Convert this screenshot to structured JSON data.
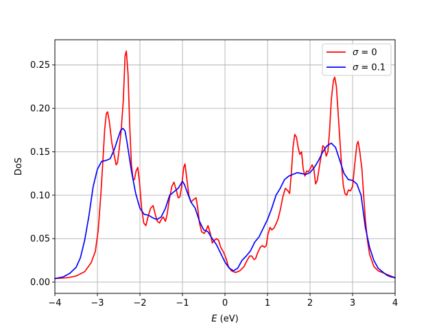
{
  "chart_data": {
    "type": "line",
    "title": "",
    "xlabel_italic": "E",
    "xlabel_rest": " (eV)",
    "ylabel": "DoS",
    "xlim": [
      -4,
      4
    ],
    "ylim": [
      -0.013,
      0.279
    ],
    "xticks": [
      -4,
      -3,
      -2,
      -1,
      0,
      1,
      2,
      3,
      4
    ],
    "xtick_labels": [
      "−4",
      "−3",
      "−2",
      "−1",
      "0",
      "1",
      "2",
      "3",
      "4"
    ],
    "yticks": [
      0.0,
      0.05,
      0.1,
      0.15,
      0.2,
      0.25
    ],
    "ytick_labels": [
      "0.00",
      "0.05",
      "0.10",
      "0.15",
      "0.20",
      "0.25"
    ],
    "grid": true,
    "legend_position": "top-right",
    "series": [
      {
        "name_symbol": "σ",
        "name_rest": " = 0",
        "color": "#ff0000",
        "points": [
          [
            -4.0,
            0.004
          ],
          [
            -3.7,
            0.005
          ],
          [
            -3.5,
            0.007
          ],
          [
            -3.3,
            0.012
          ],
          [
            -3.15,
            0.022
          ],
          [
            -3.05,
            0.035
          ],
          [
            -2.98,
            0.06
          ],
          [
            -2.92,
            0.1
          ],
          [
            -2.87,
            0.14
          ],
          [
            -2.83,
            0.175
          ],
          [
            -2.79,
            0.194
          ],
          [
            -2.76,
            0.196
          ],
          [
            -2.72,
            0.185
          ],
          [
            -2.66,
            0.16
          ],
          [
            -2.6,
            0.145
          ],
          [
            -2.56,
            0.135
          ],
          [
            -2.53,
            0.137
          ],
          [
            -2.49,
            0.152
          ],
          [
            -2.44,
            0.175
          ],
          [
            -2.39,
            0.21
          ],
          [
            -2.35,
            0.26
          ],
          [
            -2.32,
            0.266
          ],
          [
            -2.28,
            0.24
          ],
          [
            -2.24,
            0.18
          ],
          [
            -2.2,
            0.135
          ],
          [
            -2.16,
            0.118
          ],
          [
            -2.13,
            0.118
          ],
          [
            -2.09,
            0.128
          ],
          [
            -2.05,
            0.132
          ],
          [
            -2.01,
            0.115
          ],
          [
            -1.96,
            0.085
          ],
          [
            -1.91,
            0.068
          ],
          [
            -1.86,
            0.065
          ],
          [
            -1.81,
            0.075
          ],
          [
            -1.75,
            0.085
          ],
          [
            -1.69,
            0.088
          ],
          [
            -1.64,
            0.078
          ],
          [
            -1.59,
            0.07
          ],
          [
            -1.54,
            0.068
          ],
          [
            -1.5,
            0.072
          ],
          [
            -1.45,
            0.075
          ],
          [
            -1.4,
            0.07
          ],
          [
            -1.36,
            0.078
          ],
          [
            -1.31,
            0.095
          ],
          [
            -1.25,
            0.11
          ],
          [
            -1.2,
            0.115
          ],
          [
            -1.14,
            0.105
          ],
          [
            -1.1,
            0.097
          ],
          [
            -1.06,
            0.098
          ],
          [
            -1.02,
            0.11
          ],
          [
            -0.97,
            0.132
          ],
          [
            -0.94,
            0.136
          ],
          [
            -0.9,
            0.12
          ],
          [
            -0.85,
            0.1
          ],
          [
            -0.8,
            0.092
          ],
          [
            -0.74,
            0.095
          ],
          [
            -0.68,
            0.097
          ],
          [
            -0.64,
            0.085
          ],
          [
            -0.6,
            0.068
          ],
          [
            -0.55,
            0.058
          ],
          [
            -0.49,
            0.056
          ],
          [
            -0.44,
            0.06
          ],
          [
            -0.4,
            0.065
          ],
          [
            -0.35,
            0.057
          ],
          [
            -0.3,
            0.045
          ],
          [
            -0.25,
            0.048
          ],
          [
            -0.2,
            0.05
          ],
          [
            -0.15,
            0.048
          ],
          [
            -0.1,
            0.04
          ],
          [
            -0.04,
            0.035
          ],
          [
            0.02,
            0.028
          ],
          [
            0.08,
            0.018
          ],
          [
            0.15,
            0.013
          ],
          [
            0.25,
            0.011
          ],
          [
            0.35,
            0.013
          ],
          [
            0.45,
            0.018
          ],
          [
            0.52,
            0.025
          ],
          [
            0.58,
            0.03
          ],
          [
            0.63,
            0.03
          ],
          [
            0.68,
            0.026
          ],
          [
            0.72,
            0.027
          ],
          [
            0.77,
            0.034
          ],
          [
            0.83,
            0.04
          ],
          [
            0.88,
            0.042
          ],
          [
            0.93,
            0.04
          ],
          [
            0.97,
            0.042
          ],
          [
            1.01,
            0.055
          ],
          [
            1.06,
            0.063
          ],
          [
            1.1,
            0.06
          ],
          [
            1.15,
            0.062
          ],
          [
            1.2,
            0.067
          ],
          [
            1.25,
            0.073
          ],
          [
            1.3,
            0.083
          ],
          [
            1.36,
            0.098
          ],
          [
            1.42,
            0.108
          ],
          [
            1.48,
            0.105
          ],
          [
            1.52,
            0.102
          ],
          [
            1.56,
            0.125
          ],
          [
            1.6,
            0.155
          ],
          [
            1.64,
            0.17
          ],
          [
            1.68,
            0.167
          ],
          [
            1.72,
            0.155
          ],
          [
            1.76,
            0.147
          ],
          [
            1.8,
            0.15
          ],
          [
            1.84,
            0.13
          ],
          [
            1.88,
            0.122
          ],
          [
            1.92,
            0.128
          ],
          [
            1.96,
            0.127
          ],
          [
            2.0,
            0.13
          ],
          [
            2.05,
            0.135
          ],
          [
            2.09,
            0.13
          ],
          [
            2.13,
            0.113
          ],
          [
            2.17,
            0.117
          ],
          [
            2.21,
            0.13
          ],
          [
            2.26,
            0.145
          ],
          [
            2.3,
            0.157
          ],
          [
            2.34,
            0.155
          ],
          [
            2.38,
            0.145
          ],
          [
            2.42,
            0.15
          ],
          [
            2.46,
            0.175
          ],
          [
            2.5,
            0.21
          ],
          [
            2.55,
            0.232
          ],
          [
            2.58,
            0.236
          ],
          [
            2.62,
            0.225
          ],
          [
            2.66,
            0.195
          ],
          [
            2.7,
            0.165
          ],
          [
            2.74,
            0.135
          ],
          [
            2.78,
            0.112
          ],
          [
            2.82,
            0.102
          ],
          [
            2.86,
            0.1
          ],
          [
            2.9,
            0.106
          ],
          [
            2.95,
            0.105
          ],
          [
            3.0,
            0.11
          ],
          [
            3.05,
            0.135
          ],
          [
            3.1,
            0.158
          ],
          [
            3.13,
            0.162
          ],
          [
            3.17,
            0.15
          ],
          [
            3.22,
            0.13
          ],
          [
            3.26,
            0.1
          ],
          [
            3.3,
            0.072
          ],
          [
            3.35,
            0.048
          ],
          [
            3.4,
            0.032
          ],
          [
            3.5,
            0.018
          ],
          [
            3.6,
            0.013
          ],
          [
            3.75,
            0.01
          ],
          [
            3.9,
            0.007
          ],
          [
            4.0,
            0.005
          ]
        ]
      },
      {
        "name_symbol": "σ",
        "name_rest": " = 0.1",
        "color": "#0000ff",
        "points": [
          [
            -4.0,
            0.004
          ],
          [
            -3.8,
            0.006
          ],
          [
            -3.65,
            0.01
          ],
          [
            -3.5,
            0.017
          ],
          [
            -3.4,
            0.028
          ],
          [
            -3.3,
            0.048
          ],
          [
            -3.2,
            0.076
          ],
          [
            -3.1,
            0.11
          ],
          [
            -3.0,
            0.13
          ],
          [
            -2.9,
            0.139
          ],
          [
            -2.8,
            0.14
          ],
          [
            -2.7,
            0.142
          ],
          [
            -2.6,
            0.153
          ],
          [
            -2.5,
            0.168
          ],
          [
            -2.45,
            0.175
          ],
          [
            -2.4,
            0.177
          ],
          [
            -2.35,
            0.174
          ],
          [
            -2.3,
            0.16
          ],
          [
            -2.2,
            0.128
          ],
          [
            -2.1,
            0.102
          ],
          [
            -2.0,
            0.085
          ],
          [
            -1.9,
            0.078
          ],
          [
            -1.8,
            0.077
          ],
          [
            -1.7,
            0.074
          ],
          [
            -1.6,
            0.072
          ],
          [
            -1.5,
            0.075
          ],
          [
            -1.4,
            0.085
          ],
          [
            -1.3,
            0.1
          ],
          [
            -1.2,
            0.104
          ],
          [
            -1.1,
            0.108
          ],
          [
            -1.0,
            0.116
          ],
          [
            -0.95,
            0.112
          ],
          [
            -0.9,
            0.105
          ],
          [
            -0.8,
            0.092
          ],
          [
            -0.7,
            0.085
          ],
          [
            -0.6,
            0.07
          ],
          [
            -0.5,
            0.06
          ],
          [
            -0.4,
            0.058
          ],
          [
            -0.3,
            0.05
          ],
          [
            -0.2,
            0.043
          ],
          [
            -0.1,
            0.033
          ],
          [
            0.0,
            0.023
          ],
          [
            0.1,
            0.016
          ],
          [
            0.2,
            0.013
          ],
          [
            0.3,
            0.016
          ],
          [
            0.4,
            0.025
          ],
          [
            0.5,
            0.03
          ],
          [
            0.6,
            0.036
          ],
          [
            0.7,
            0.046
          ],
          [
            0.8,
            0.052
          ],
          [
            0.9,
            0.062
          ],
          [
            1.0,
            0.072
          ],
          [
            1.1,
            0.085
          ],
          [
            1.2,
            0.1
          ],
          [
            1.3,
            0.108
          ],
          [
            1.4,
            0.118
          ],
          [
            1.5,
            0.122
          ],
          [
            1.6,
            0.124
          ],
          [
            1.7,
            0.126
          ],
          [
            1.8,
            0.125
          ],
          [
            1.9,
            0.124
          ],
          [
            2.0,
            0.126
          ],
          [
            2.1,
            0.132
          ],
          [
            2.2,
            0.14
          ],
          [
            2.3,
            0.15
          ],
          [
            2.4,
            0.157
          ],
          [
            2.5,
            0.16
          ],
          [
            2.6,
            0.155
          ],
          [
            2.7,
            0.14
          ],
          [
            2.8,
            0.125
          ],
          [
            2.9,
            0.118
          ],
          [
            3.0,
            0.117
          ],
          [
            3.1,
            0.113
          ],
          [
            3.2,
            0.1
          ],
          [
            3.3,
            0.063
          ],
          [
            3.4,
            0.04
          ],
          [
            3.5,
            0.025
          ],
          [
            3.6,
            0.016
          ],
          [
            3.7,
            0.012
          ],
          [
            3.8,
            0.008
          ],
          [
            3.9,
            0.006
          ],
          [
            4.0,
            0.005
          ]
        ]
      }
    ]
  }
}
